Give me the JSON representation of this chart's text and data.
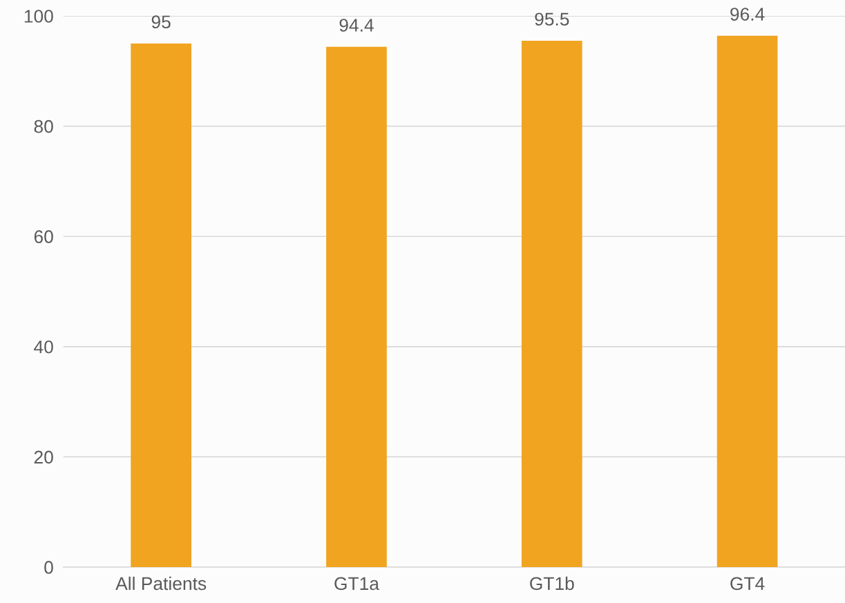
{
  "chart_data": {
    "type": "bar",
    "categories": [
      "All Patients",
      "GT1a",
      "GT1b",
      "GT4"
    ],
    "values": [
      95,
      94.4,
      95.5,
      96.4
    ],
    "color": "#f0a420",
    "ylim": [
      0,
      100
    ],
    "yticks": [
      0,
      20,
      40,
      60,
      80,
      100
    ],
    "grid": "y",
    "data_labels": true
  }
}
